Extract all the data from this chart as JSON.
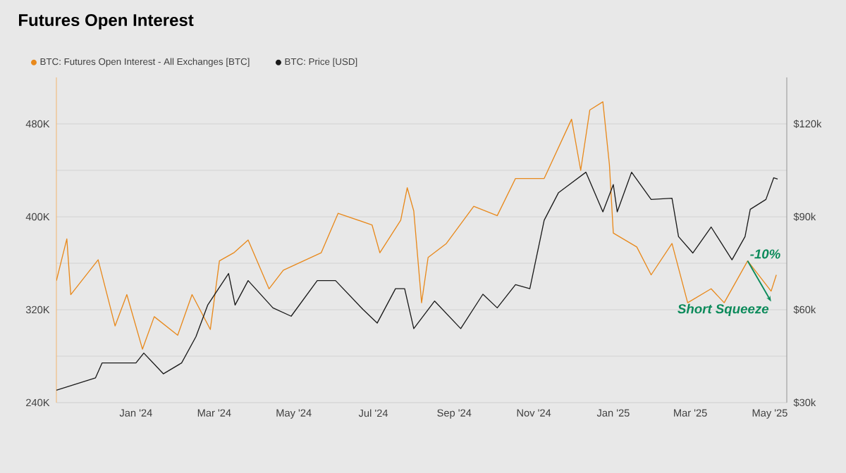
{
  "chart_data": {
    "type": "line",
    "title": "Futures Open Interest",
    "xlim": [
      "2023-11-01",
      "2025-05-14"
    ],
    "xticks": [
      {
        "value": "2024-01-01",
        "label": "Jan '24"
      },
      {
        "value": "2024-03-01",
        "label": "Mar '24"
      },
      {
        "value": "2024-05-01",
        "label": "May '24"
      },
      {
        "value": "2024-07-01",
        "label": "Jul '24"
      },
      {
        "value": "2024-09-01",
        "label": "Sep '24"
      },
      {
        "value": "2024-11-01",
        "label": "Nov '24"
      },
      {
        "value": "2025-01-01",
        "label": "Jan '25"
      },
      {
        "value": "2025-03-01",
        "label": "Mar '25"
      },
      {
        "value": "2025-05-01",
        "label": "May '25"
      }
    ],
    "ylim": [
      240000,
      520000
    ],
    "yticks": [
      {
        "value": 240000,
        "label": "240K"
      },
      {
        "value": 280000,
        "label": null
      },
      {
        "value": 320000,
        "label": "320K"
      },
      {
        "value": 360000,
        "label": null
      },
      {
        "value": 400000,
        "label": "400K"
      },
      {
        "value": 440000,
        "label": null
      },
      {
        "value": 480000,
        "label": "480K"
      }
    ],
    "y2lim": [
      30000,
      135000
    ],
    "y2ticks": [
      {
        "value": 30000,
        "label": "$30k"
      },
      {
        "value": 60000,
        "label": "$60k"
      },
      {
        "value": 90000,
        "label": "$90k"
      },
      {
        "value": 120000,
        "label": "$120k"
      }
    ],
    "grid": "y",
    "legend": "top left",
    "series": [
      {
        "name": "BTC: Futures Open Interest - All Exchanges [BTC]",
        "color": "#e8891c",
        "x": [
          "2023-11-01",
          "2023-11-09",
          "2023-11-12",
          "2023-12-03",
          "2023-12-16",
          "2023-12-25",
          "2024-01-06",
          "2024-01-15",
          "2024-02-02",
          "2024-02-13",
          "2024-02-27",
          "2024-03-05",
          "2024-03-16",
          "2024-03-27",
          "2024-04-12",
          "2024-04-23",
          "2024-05-22",
          "2024-06-04",
          "2024-06-30",
          "2024-07-06",
          "2024-07-22",
          "2024-07-27",
          "2024-08-01",
          "2024-08-07",
          "2024-08-12",
          "2024-08-26",
          "2024-09-16",
          "2024-10-04",
          "2024-10-18",
          "2024-11-09",
          "2024-11-30",
          "2024-12-07",
          "2024-12-14",
          "2024-12-24",
          "2024-12-29",
          "2025-01-01",
          "2025-01-19",
          "2025-01-30",
          "2025-02-15",
          "2025-02-27",
          "2025-03-17",
          "2025-03-27",
          "2025-04-14",
          "2025-05-02",
          "2025-05-06"
        ],
        "values": [
          345000,
          381000,
          333000,
          363000,
          306000,
          333000,
          286000,
          314000,
          298000,
          333000,
          303000,
          362000,
          369000,
          380000,
          338000,
          354000,
          369000,
          403000,
          393000,
          369000,
          397000,
          425000,
          405000,
          326000,
          365000,
          377000,
          409000,
          401000,
          433000,
          433000,
          484000,
          440000,
          492000,
          499000,
          445000,
          386000,
          374000,
          350000,
          377000,
          326000,
          338000,
          326000,
          362000,
          336000,
          350000
        ]
      },
      {
        "name": "BTC: Price [USD]",
        "color": "#1a1a1a",
        "axis": "y2",
        "x": [
          "2023-11-01",
          "2023-12-01",
          "2023-12-06",
          "2024-01-01",
          "2024-01-07",
          "2024-01-22",
          "2024-02-05",
          "2024-02-16",
          "2024-02-25",
          "2024-03-12",
          "2024-03-17",
          "2024-03-27",
          "2024-04-15",
          "2024-04-29",
          "2024-05-19",
          "2024-06-02",
          "2024-06-23",
          "2024-07-04",
          "2024-07-18",
          "2024-07-25",
          "2024-08-01",
          "2024-08-17",
          "2024-09-06",
          "2024-09-23",
          "2024-10-04",
          "2024-10-18",
          "2024-10-29",
          "2024-11-09",
          "2024-11-20",
          "2024-12-11",
          "2024-12-24",
          "2025-01-01",
          "2025-01-04",
          "2025-01-15",
          "2025-01-30",
          "2025-02-15",
          "2025-02-20",
          "2025-03-03",
          "2025-03-17",
          "2025-04-02",
          "2025-04-12",
          "2025-04-16",
          "2025-04-28",
          "2025-05-04",
          "2025-05-07"
        ],
        "values": [
          34000,
          38000,
          42800,
          42800,
          46000,
          39300,
          42800,
          51300,
          61500,
          71700,
          61500,
          69400,
          60600,
          57900,
          69400,
          69400,
          60100,
          55700,
          66800,
          66800,
          53900,
          62800,
          53900,
          65000,
          60600,
          68100,
          66800,
          88900,
          97800,
          104400,
          91600,
          100400,
          91600,
          104400,
          95600,
          96000,
          83600,
          78300,
          86700,
          76100,
          83600,
          92400,
          95600,
          102600,
          102200
        ]
      }
    ],
    "annotations": [
      {
        "text": "-10%",
        "x": "2025-04-14",
        "y": 362000
      },
      {
        "text": "Short Squeeze",
        "x": "2025-05-02",
        "y": 327000
      }
    ]
  }
}
